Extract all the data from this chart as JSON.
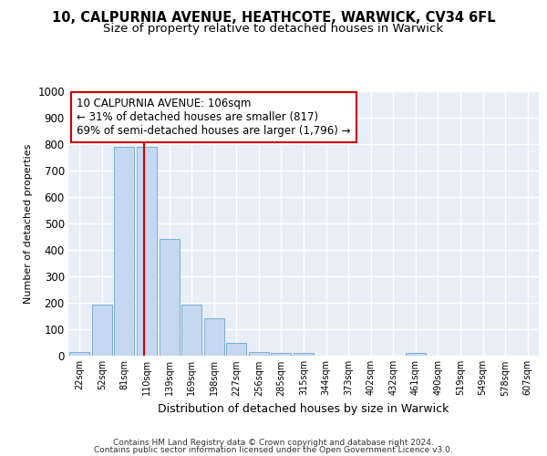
{
  "title1": "10, CALPURNIA AVENUE, HEATHCOTE, WARWICK, CV34 6FL",
  "title2": "Size of property relative to detached houses in Warwick",
  "xlabel": "Distribution of detached houses by size in Warwick",
  "ylabel": "Number of detached properties",
  "categories": [
    "22sqm",
    "52sqm",
    "81sqm",
    "110sqm",
    "139sqm",
    "169sqm",
    "198sqm",
    "227sqm",
    "256sqm",
    "285sqm",
    "315sqm",
    "344sqm",
    "373sqm",
    "402sqm",
    "432sqm",
    "461sqm",
    "490sqm",
    "519sqm",
    "549sqm",
    "578sqm",
    "607sqm"
  ],
  "values": [
    15,
    193,
    790,
    790,
    443,
    193,
    143,
    48,
    13,
    10,
    10,
    0,
    0,
    0,
    0,
    10,
    0,
    0,
    0,
    0,
    0
  ],
  "bar_color": "#c5d8ef",
  "bar_edge_color": "#7bafd4",
  "vline_color": "#cc0000",
  "annotation_text": "10 CALPURNIA AVENUE: 106sqm\n← 31% of detached houses are smaller (817)\n69% of semi-detached houses are larger (1,796) →",
  "ylim": [
    0,
    1000
  ],
  "yticks": [
    0,
    100,
    200,
    300,
    400,
    500,
    600,
    700,
    800,
    900,
    1000
  ],
  "footer_line1": "Contains HM Land Registry data © Crown copyright and database right 2024.",
  "footer_line2": "Contains public sector information licensed under the Open Government Licence v3.0.",
  "bg_color": "#e8eef8",
  "grid_color": "#ffffff",
  "title1_fontsize": 10.5,
  "title2_fontsize": 9.5
}
